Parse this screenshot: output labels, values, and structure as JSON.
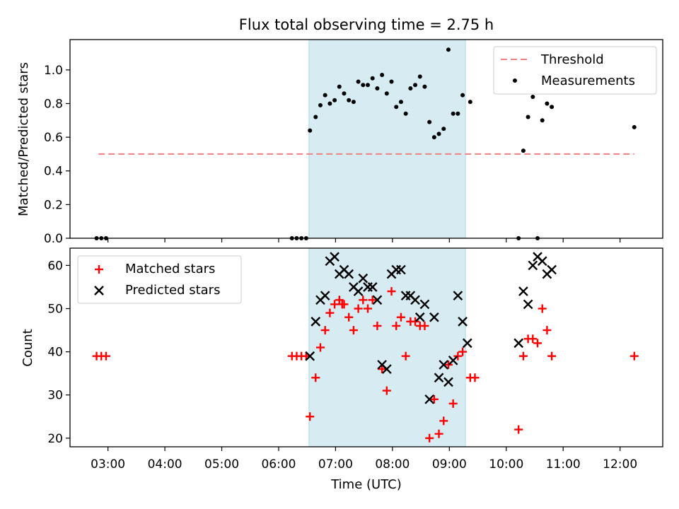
{
  "figure": {
    "title": "Flux total observing time = 2.75 h"
  },
  "chart_data": [
    {
      "type": "scatter",
      "title": "Flux total observing time = 2.75 h",
      "xlabel": "",
      "ylabel": "Matched/Predicted stars",
      "xlim": [
        "02:20",
        "12:45"
      ],
      "ylim": [
        0.0,
        1.18
      ],
      "yticks": [
        0.0,
        0.2,
        0.4,
        0.6,
        0.8,
        1.0
      ],
      "ytick_labels": [
        "0.0",
        "0.2",
        "0.4",
        "0.6",
        "0.8",
        "1.0"
      ],
      "shaded_span": {
        "x": [
          "06:32",
          "09:17"
        ],
        "color": "#add8e6"
      },
      "legend": {
        "position": "top-right",
        "entries": [
          "Threshold",
          "Measurements"
        ]
      },
      "series": [
        {
          "name": "Threshold",
          "style": "dashed-line",
          "color": "#f08080",
          "x": [
            "02:50",
            "12:15"
          ],
          "y": [
            0.5,
            0.5
          ]
        },
        {
          "name": "Measurements",
          "style": "dot",
          "color": "#000000",
          "x": [
            "02:48",
            "02:53",
            "02:58",
            "06:14",
            "06:19",
            "06:24",
            "06:29",
            "06:33",
            "06:39",
            "06:44",
            "06:49",
            "06:54",
            "06:59",
            "07:04",
            "07:09",
            "07:14",
            "07:19",
            "07:24",
            "07:29",
            "07:34",
            "07:39",
            "07:44",
            "07:49",
            "07:54",
            "07:59",
            "08:04",
            "08:09",
            "08:14",
            "08:19",
            "08:24",
            "08:29",
            "08:34",
            "08:39",
            "08:44",
            "08:49",
            "08:54",
            "08:59",
            "09:04",
            "09:09",
            "09:14",
            "09:22",
            "10:13",
            "10:18",
            "10:23",
            "10:28",
            "10:33",
            "10:38",
            "10:43",
            "10:48",
            "12:15"
          ],
          "y": [
            0.0,
            0.0,
            0.0,
            0.0,
            0.0,
            0.0,
            0.0,
            0.64,
            0.72,
            0.79,
            0.85,
            0.8,
            0.82,
            0.9,
            0.86,
            0.82,
            0.81,
            0.93,
            0.91,
            0.91,
            0.95,
            0.89,
            0.97,
            0.86,
            0.93,
            0.78,
            0.81,
            0.74,
            0.89,
            0.91,
            0.96,
            0.9,
            0.69,
            0.6,
            0.62,
            0.65,
            1.12,
            0.74,
            0.74,
            0.85,
            0.81,
            0.0,
            0.52,
            0.72,
            0.84,
            0.0,
            0.7,
            0.8,
            0.78,
            0.66
          ]
        }
      ]
    },
    {
      "type": "scatter",
      "title": "",
      "xlabel": "Time (UTC)",
      "ylabel": "Count",
      "xlim": [
        "02:20",
        "12:45"
      ],
      "ylim": [
        18,
        64
      ],
      "yticks": [
        20,
        30,
        40,
        50,
        60
      ],
      "ytick_labels": [
        "20",
        "30",
        "40",
        "50",
        "60"
      ],
      "xticks": [
        "03:00",
        "04:00",
        "05:00",
        "06:00",
        "07:00",
        "08:00",
        "09:00",
        "10:00",
        "11:00",
        "12:00"
      ],
      "shaded_span": {
        "x": [
          "06:32",
          "09:17"
        ],
        "color": "#add8e6"
      },
      "legend": {
        "position": "top-left",
        "entries": [
          "Matched stars",
          "Predicted stars"
        ]
      },
      "series": [
        {
          "name": "Matched stars",
          "marker": "+",
          "color": "#ff0000",
          "x": [
            "02:48",
            "02:53",
            "02:58",
            "06:14",
            "06:19",
            "06:24",
            "06:29",
            "06:33",
            "06:39",
            "06:44",
            "06:49",
            "06:54",
            "06:59",
            "07:04",
            "07:07",
            "07:09",
            "07:14",
            "07:19",
            "07:24",
            "07:29",
            "07:34",
            "07:39",
            "07:44",
            "07:49",
            "07:54",
            "07:59",
            "08:04",
            "08:09",
            "08:14",
            "08:19",
            "08:24",
            "08:29",
            "08:34",
            "08:39",
            "08:44",
            "08:49",
            "08:54",
            "08:59",
            "09:04",
            "09:09",
            "09:14",
            "09:22",
            "09:27",
            "10:13",
            "10:18",
            "10:23",
            "10:28",
            "10:33",
            "10:38",
            "10:43",
            "10:48",
            "12:15"
          ],
          "y": [
            39,
            39,
            39,
            39,
            39,
            39,
            39,
            25,
            34,
            41,
            45,
            49,
            51,
            52,
            51,
            51,
            48,
            45,
            50,
            52,
            50,
            52,
            46,
            36,
            31,
            54,
            46,
            48,
            39,
            47,
            47,
            46,
            46,
            20,
            29,
            21,
            24,
            37,
            28,
            39,
            40,
            34,
            34,
            22,
            39,
            43,
            43,
            42,
            50,
            45,
            39,
            39
          ]
        },
        {
          "name": "Predicted stars",
          "marker": "x",
          "color": "#000000",
          "x": [
            "06:33",
            "06:39",
            "06:44",
            "06:49",
            "06:54",
            "06:59",
            "07:04",
            "07:09",
            "07:14",
            "07:19",
            "07:24",
            "07:29",
            "07:34",
            "07:39",
            "07:44",
            "07:49",
            "07:54",
            "07:59",
            "08:04",
            "08:09",
            "08:14",
            "08:19",
            "08:24",
            "08:29",
            "08:34",
            "08:39",
            "08:44",
            "08:49",
            "08:54",
            "08:59",
            "09:04",
            "09:09",
            "09:14",
            "09:19",
            "10:13",
            "10:18",
            "10:23",
            "10:28",
            "10:33",
            "10:38",
            "10:43",
            "10:48"
          ],
          "y": [
            39,
            47,
            52,
            53,
            61,
            62,
            58,
            59,
            58,
            55,
            54,
            57,
            55,
            55,
            52,
            37,
            36,
            58,
            59,
            59,
            53,
            53,
            52,
            48,
            51,
            29,
            48,
            34,
            37,
            33,
            38,
            53,
            47,
            42,
            42,
            54,
            51,
            60,
            62,
            61,
            58,
            59
          ]
        }
      ]
    }
  ]
}
